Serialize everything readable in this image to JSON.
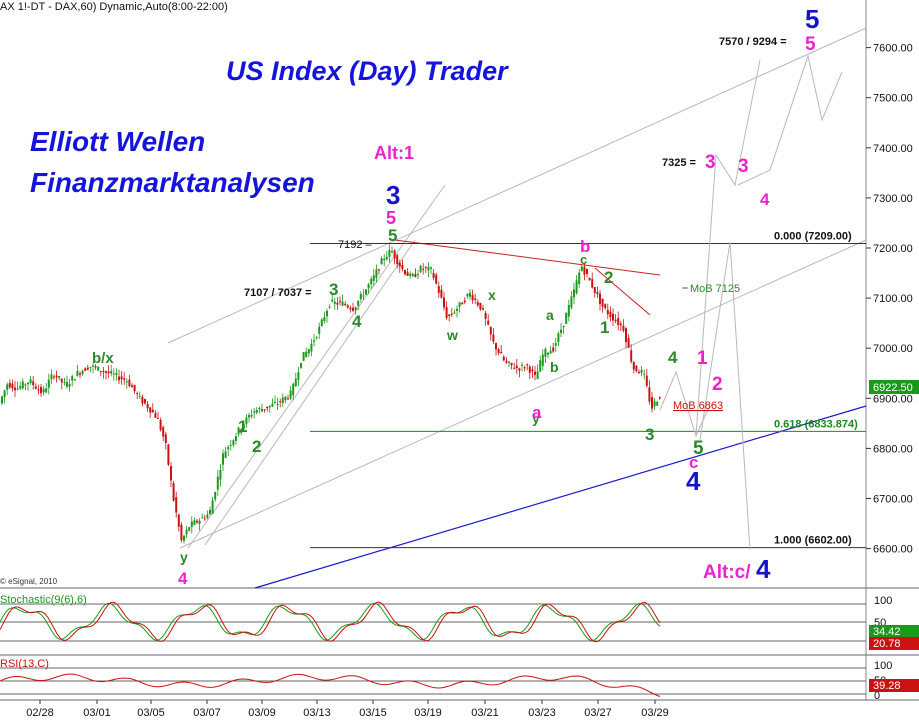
{
  "chart_data": {
    "type": "candlestick",
    "header": "AX 1!-DT - DAX,60) Dynamic,Auto(8:00-22:00)",
    "title": "US Index (Day) Trader",
    "subtitle_lines": [
      "Elliott Wellen",
      "Finanzmarktanalysen"
    ],
    "watermark": "© eSignal, 2010",
    "x_ticks": [
      "02/28",
      "03/01",
      "03/05",
      "03/07",
      "03/09",
      "03/13",
      "03/15",
      "03/19",
      "03/21",
      "03/23",
      "03/27",
      "03/29"
    ],
    "y_ticks": [
      "6600.00",
      "6700.00",
      "6800.00",
      "6900.00",
      "7000.00",
      "7100.00",
      "7200.00",
      "7300.00",
      "7400.00",
      "7500.00",
      "7600.00"
    ],
    "ylim": [
      6560,
      7680
    ],
    "last_price": "6922.50",
    "price_path": [
      [
        0,
        6880
      ],
      [
        10,
        6930
      ],
      [
        20,
        6920
      ],
      [
        32,
        6935
      ],
      [
        45,
        6910
      ],
      [
        56,
        6950
      ],
      [
        68,
        6925
      ],
      [
        80,
        6950
      ],
      [
        92,
        6965
      ],
      [
        104,
        6955
      ],
      [
        118,
        6945
      ],
      [
        130,
        6935
      ],
      [
        142,
        6900
      ],
      [
        152,
        6880
      ],
      [
        160,
        6860
      ],
      [
        168,
        6810
      ],
      [
        176,
        6700
      ],
      [
        184,
        6615
      ],
      [
        192,
        6645
      ],
      [
        200,
        6655
      ],
      [
        212,
        6670
      ],
      [
        218,
        6720
      ],
      [
        226,
        6790
      ],
      [
        236,
        6820
      ],
      [
        246,
        6850
      ],
      [
        256,
        6875
      ],
      [
        266,
        6880
      ],
      [
        280,
        6890
      ],
      [
        294,
        6910
      ],
      [
        304,
        6980
      ],
      [
        312,
        7000
      ],
      [
        322,
        7040
      ],
      [
        332,
        7090
      ],
      [
        344,
        7090
      ],
      [
        356,
        7080
      ],
      [
        366,
        7110
      ],
      [
        376,
        7140
      ],
      [
        386,
        7180
      ],
      [
        394,
        7195
      ],
      [
        404,
        7160
      ],
      [
        414,
        7140
      ],
      [
        424,
        7160
      ],
      [
        434,
        7155
      ],
      [
        442,
        7110
      ],
      [
        450,
        7060
      ],
      [
        462,
        7085
      ],
      [
        472,
        7110
      ],
      [
        484,
        7080
      ],
      [
        496,
        7010
      ],
      [
        508,
        6970
      ],
      [
        520,
        6960
      ],
      [
        530,
        6965
      ],
      [
        538,
        6940
      ],
      [
        546,
        6990
      ],
      [
        556,
        7000
      ],
      [
        566,
        7050
      ],
      [
        576,
        7110
      ],
      [
        584,
        7165
      ],
      [
        596,
        7120
      ],
      [
        606,
        7080
      ],
      [
        616,
        7060
      ],
      [
        626,
        7040
      ],
      [
        636,
        6960
      ],
      [
        646,
        6950
      ],
      [
        654,
        6880
      ],
      [
        662,
        6905
      ]
    ],
    "levels": [
      {
        "label": "0.000 (7209.00)",
        "value": 7209
      },
      {
        "label": "0.618 (6833.874)",
        "value": 6834
      },
      {
        "label": "1.000 (6602.00)",
        "value": 6602
      }
    ],
    "price_notes": {
      "p7192": "7192 –",
      "p7107": "7107 / 7037 =",
      "p7325": "7325 =",
      "p7570": "7570 / 9294 =",
      "mob7125": "MoB 7125",
      "mob6863": "MoB 6863"
    },
    "wave_labels": [
      {
        "text": "b/x",
        "color": "#2a8a2a"
      },
      {
        "text": "1",
        "color": "#2a8a2a"
      },
      {
        "text": "2",
        "color": "#2a8a2a"
      },
      {
        "text": "y",
        "color": "#2a8a2a"
      },
      {
        "text": "4",
        "color": "#ee22cc"
      },
      {
        "text": "3",
        "color": "#2a8a2a"
      },
      {
        "text": "4",
        "color": "#2a8a2a"
      },
      {
        "text": "Alt:1",
        "color": "#ee22cc"
      },
      {
        "text": "3",
        "color": "#1414cc"
      },
      {
        "text": "5",
        "color": "#ee22cc"
      },
      {
        "text": "5",
        "color": "#2a8a2a"
      },
      {
        "text": "w",
        "color": "#2a8a2a"
      },
      {
        "text": "x",
        "color": "#2a8a2a"
      },
      {
        "text": "y",
        "color": "#2a8a2a"
      },
      {
        "text": "a",
        "color": "#ee22cc"
      },
      {
        "text": "a",
        "color": "#2a8a2a"
      },
      {
        "text": "b",
        "color": "#2a8a2a"
      },
      {
        "text": "b",
        "color": "#ee22cc"
      },
      {
        "text": "c",
        "color": "#2a8a2a"
      },
      {
        "text": "2",
        "color": "#2a8a2a"
      },
      {
        "text": "1",
        "color": "#2a8a2a"
      },
      {
        "text": "3",
        "color": "#2a8a2a"
      },
      {
        "text": "4",
        "color": "#2a8a2a"
      },
      {
        "text": "1",
        "color": "#ee22cc"
      },
      {
        "text": "2",
        "color": "#ee22cc"
      },
      {
        "text": "5",
        "color": "#2a8a2a"
      },
      {
        "text": "c",
        "color": "#ee22cc"
      },
      {
        "text": "4",
        "color": "#1414cc"
      },
      {
        "text": "3",
        "color": "#ee22cc"
      },
      {
        "text": "3",
        "color": "#ee22cc"
      },
      {
        "text": "4",
        "color": "#ee22cc"
      },
      {
        "text": "5",
        "color": "#1414cc"
      },
      {
        "text": "5",
        "color": "#ee22cc"
      },
      {
        "text": "Alt:c/",
        "color": "#ee22cc"
      },
      {
        "text": "4",
        "color": "#1414cc"
      }
    ],
    "stochastic": {
      "label": "Stochastic(9(6),6)",
      "levels": [
        "100",
        "50",
        "0"
      ],
      "values": [
        "34.42",
        "20.78"
      ]
    },
    "rsi": {
      "label": "RSI(13,C)",
      "levels": [
        "100",
        "50",
        "0"
      ],
      "value": "39.28"
    },
    "colors": {
      "candle_up": "#1a9a1a",
      "candle_down": "#cc1111",
      "title": "#1414dd",
      "fib_line": "#1a8a1a",
      "trend_blue": "#1a1acc",
      "trend_red": "#cc2222",
      "channel_grey": "#b8b8b8"
    }
  }
}
